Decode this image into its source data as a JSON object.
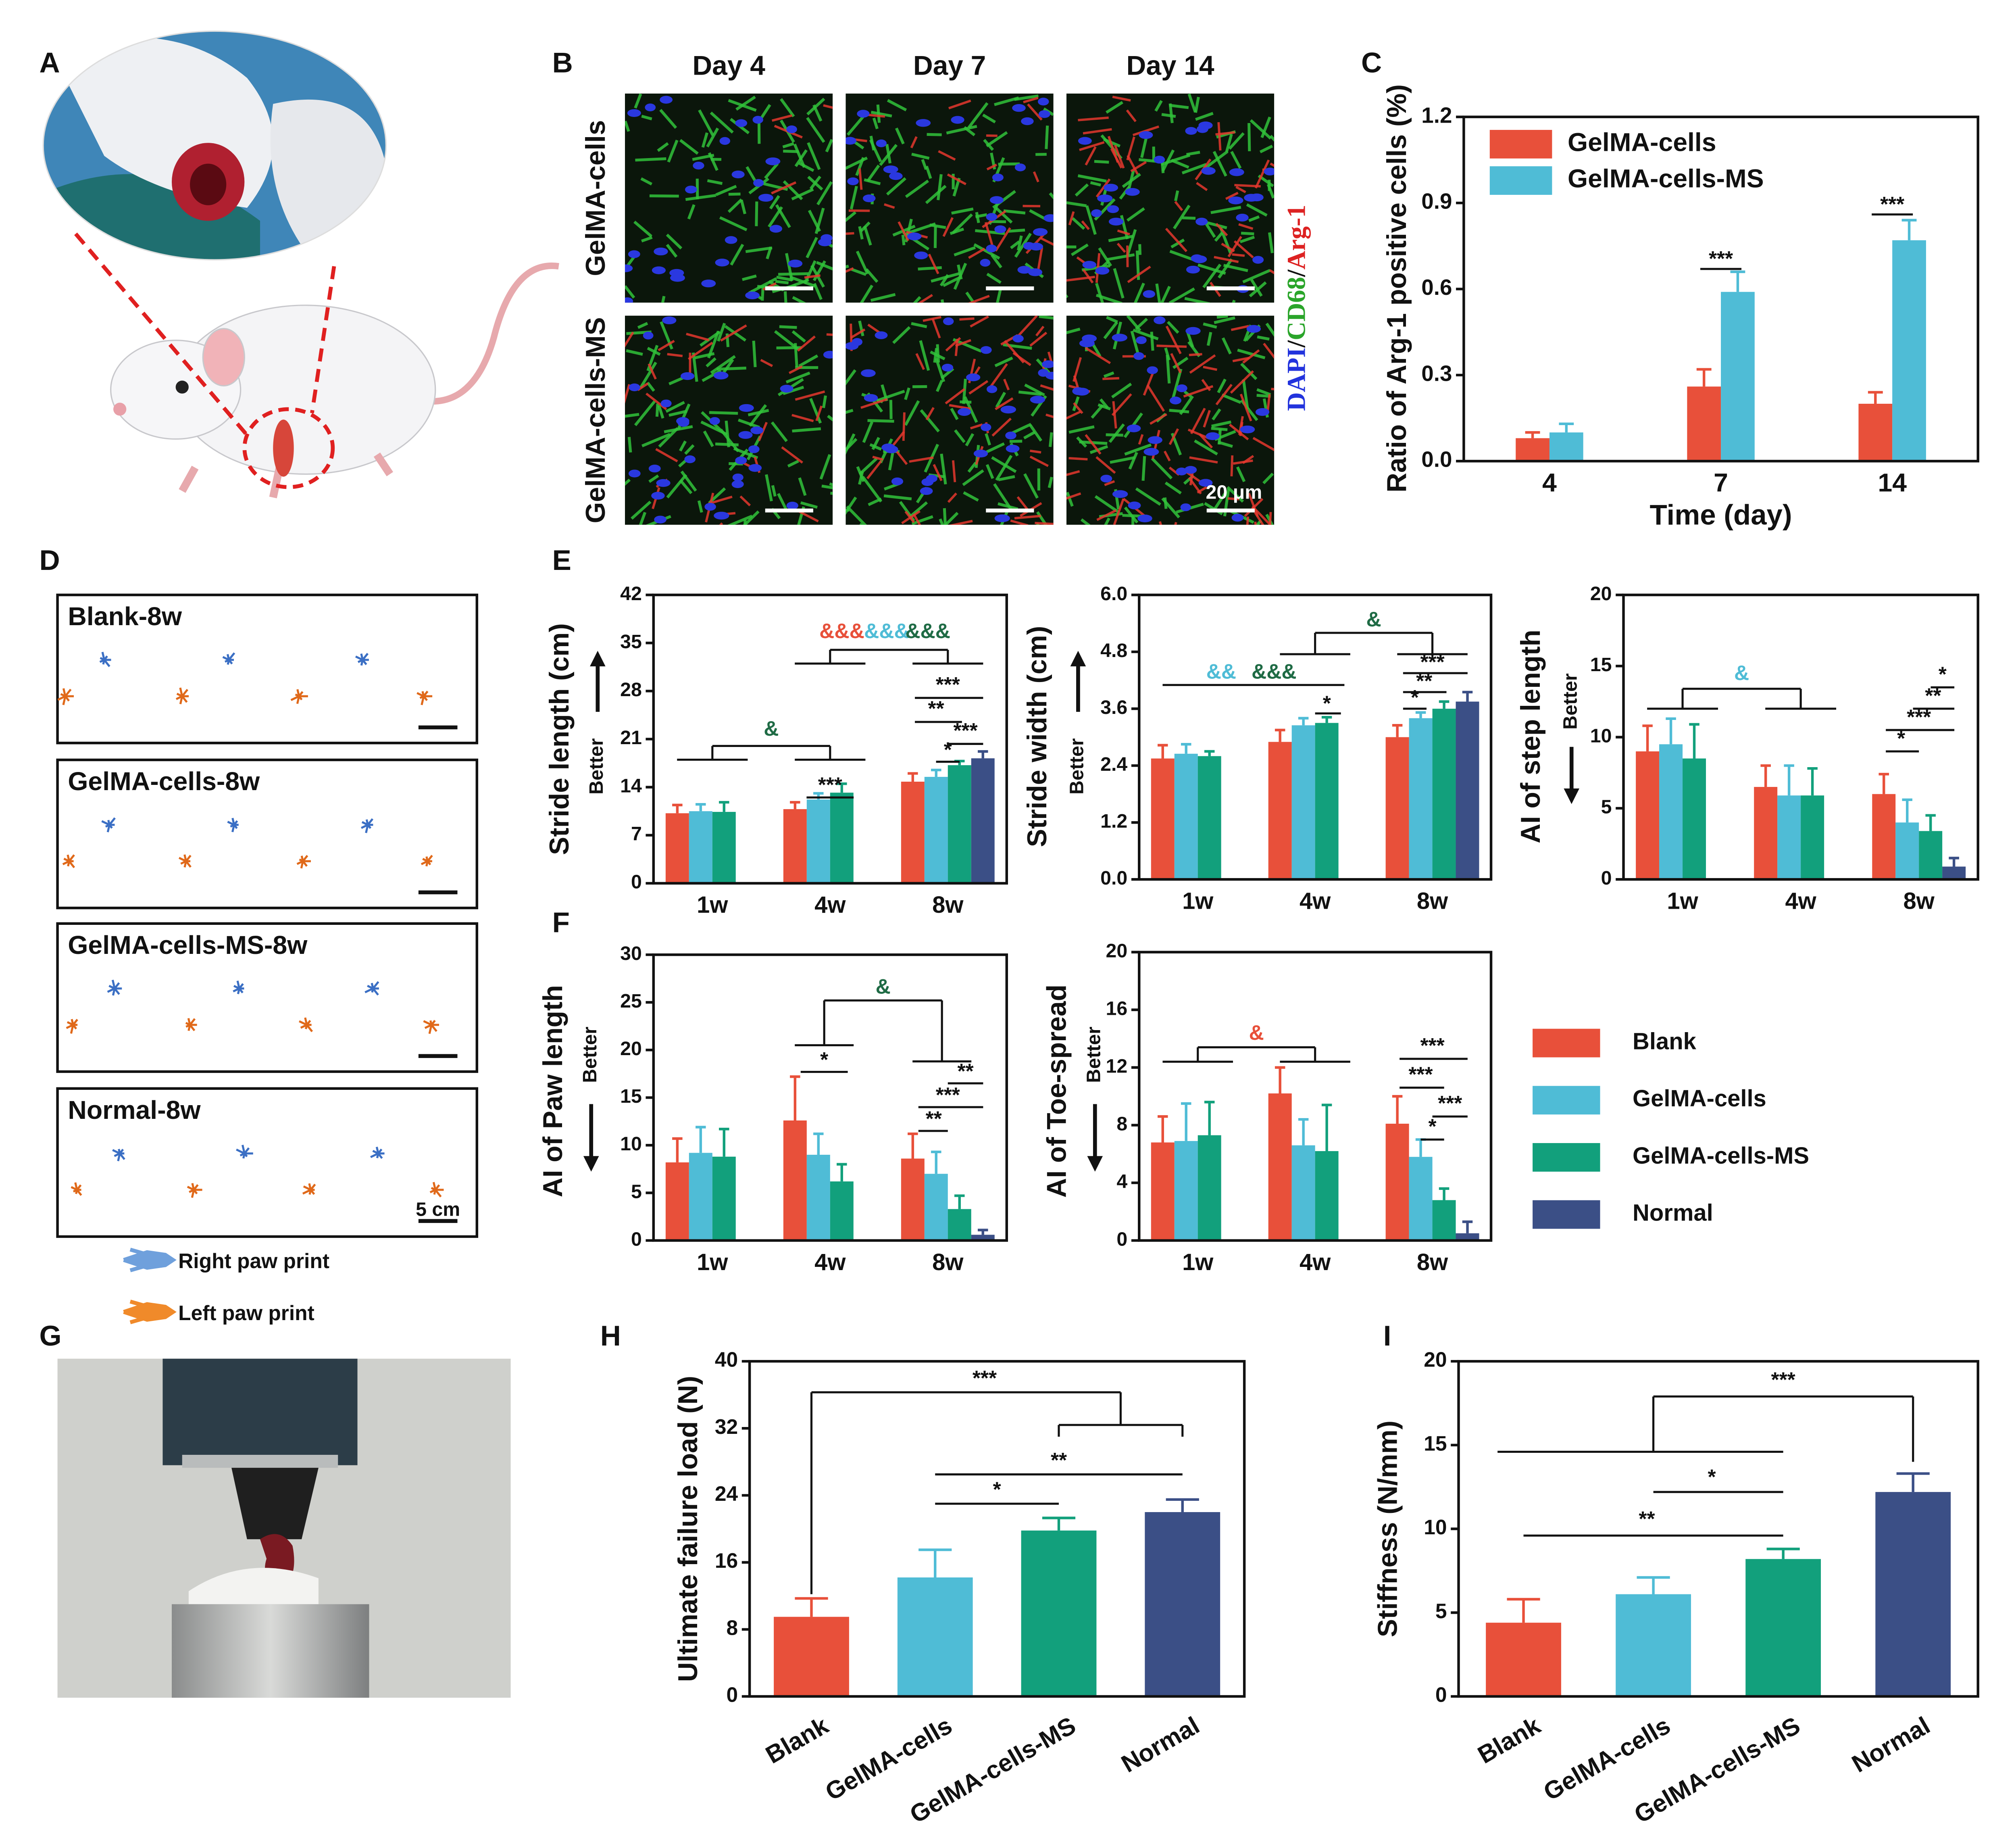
{
  "panel_labels": [
    "A",
    "B",
    "C",
    "D",
    "E",
    "F",
    "G",
    "H",
    "I"
  ],
  "micrographs": {
    "columns": [
      "Day 4",
      "Day 7",
      "Day 14"
    ],
    "rows": [
      "GelMA-cells",
      "GelMA-cells-MS"
    ],
    "stain": [
      "DAPI",
      "/",
      "CD68",
      "/",
      "Arg-1"
    ],
    "scale_bar": "20 μm"
  },
  "gait": {
    "groups": [
      "Blank-8w",
      "GelMA-cells-8w",
      "GelMA-cells-MS-8w",
      "Normal-8w"
    ],
    "scale_bar": "5 cm",
    "legend": [
      "Right paw print",
      "Left paw print"
    ]
  },
  "chart_data": [
    {
      "type": "bar",
      "ylabel": "Ratio of Arg-1 positive cells (%)",
      "xlabel": "Time (day)",
      "categories": [
        "4",
        "7",
        "14"
      ],
      "series": [
        {
          "name": "GelMA-cells",
          "color": "#e8503a",
          "values": [
            0.08,
            0.26,
            0.2
          ],
          "errors": [
            0.02,
            0.06,
            0.04
          ]
        },
        {
          "name": "GelMA-cells-MS",
          "color": "#4fbcd6",
          "values": [
            0.1,
            0.59,
            0.77
          ],
          "errors": [
            0.03,
            0.07,
            0.07
          ]
        }
      ],
      "ylim": [
        0,
        1.2
      ],
      "yticks": [
        {
          "value": 0,
          "label": "0.0"
        },
        0.3,
        0.6,
        0.9,
        1.2
      ],
      "legend": "upper left",
      "annotations": [
        {
          "text": "***"
        },
        {
          "text": "***"
        }
      ]
    },
    {
      "type": "bar",
      "ylabel": "Stride length (cm)",
      "better_label": "Better",
      "categories": [
        "1w",
        "4w",
        "8w"
      ],
      "series": [
        {
          "name": "Blank",
          "color": "#e8503a",
          "values": [
            10.2,
            10.8,
            14.8
          ],
          "errors": [
            1.2,
            1.0,
            1.2
          ]
        },
        {
          "name": "GelMA-cells",
          "color": "#4fbcd6",
          "values": [
            10.5,
            12.2,
            15.5
          ],
          "errors": [
            1.0,
            0.9,
            1.0
          ]
        },
        {
          "name": "GelMA-cells-MS",
          "color": "#12a07c",
          "values": [
            10.4,
            13.2,
            17.2
          ],
          "errors": [
            1.4,
            1.3,
            0.6
          ]
        },
        {
          "name": "Normal",
          "color": "#3b4f86",
          "values": [
            null,
            null,
            18.2
          ],
          "errors": [
            null,
            null,
            1.0
          ]
        }
      ],
      "ylim": [
        0,
        42
      ],
      "yticks": [
        0,
        7,
        14,
        21,
        28,
        35,
        42
      ],
      "annotations": [
        {
          "text": "&",
          "color": "#1f6b45"
        },
        {
          "text": "&&&",
          "color": "#e8503a"
        },
        {
          "text": "&&&",
          "color": "#4fbcd6"
        },
        {
          "text": "&&&",
          "color": "#1f6b45"
        },
        {
          "text": "***"
        },
        {
          "text": "***"
        },
        {
          "text": "**"
        },
        {
          "text": "***"
        },
        {
          "text": "*"
        }
      ]
    },
    {
      "type": "bar",
      "ylabel": "Stride width (cm)",
      "better_label": "Better",
      "categories": [
        "1w",
        "4w",
        "8w"
      ],
      "series": [
        {
          "name": "Blank",
          "color": "#e8503a",
          "values": [
            2.55,
            2.9,
            3.0
          ],
          "errors": [
            0.28,
            0.25,
            0.25
          ]
        },
        {
          "name": "GelMA-cells",
          "color": "#4fbcd6",
          "values": [
            2.65,
            3.25,
            3.4
          ],
          "errors": [
            0.2,
            0.15,
            0.12
          ]
        },
        {
          "name": "GelMA-cells-MS",
          "color": "#12a07c",
          "values": [
            2.6,
            3.3,
            3.6
          ],
          "errors": [
            0.1,
            0.12,
            0.15
          ]
        },
        {
          "name": "Normal",
          "color": "#3b4f86",
          "values": [
            null,
            null,
            3.75
          ],
          "errors": [
            null,
            null,
            0.2
          ]
        }
      ],
      "ylim": [
        0,
        6
      ],
      "yticks": [
        {
          "value": 0,
          "label": "0.0"
        },
        1.2,
        2.4,
        3.6,
        4.8,
        {
          "value": 6,
          "label": "6.0"
        }
      ],
      "annotations": [
        {
          "text": "&&",
          "color": "#4fbcd6"
        },
        {
          "text": "&&&",
          "color": "#1f6b45"
        },
        {
          "text": "&",
          "color": "#1f6b45"
        },
        {
          "text": "*"
        },
        {
          "text": "***"
        },
        {
          "text": "**"
        },
        {
          "text": "*"
        }
      ]
    },
    {
      "type": "bar",
      "ylabel": "AI of step length",
      "better_label": "Better",
      "categories": [
        "1w",
        "4w",
        "8w"
      ],
      "series": [
        {
          "name": "Blank",
          "color": "#e8503a",
          "values": [
            9,
            6.5,
            6
          ],
          "errors": [
            1.8,
            1.5,
            1.4
          ]
        },
        {
          "name": "GelMA-cells",
          "color": "#4fbcd6",
          "values": [
            9.5,
            5.9,
            4
          ],
          "errors": [
            1.8,
            2.1,
            1.6
          ]
        },
        {
          "name": "GelMA-cells-MS",
          "color": "#12a07c",
          "values": [
            8.5,
            5.9,
            3.4
          ],
          "errors": [
            2.4,
            1.9,
            1.1
          ]
        },
        {
          "name": "Normal",
          "color": "#3b4f86",
          "values": [
            null,
            null,
            0.9
          ],
          "errors": [
            null,
            null,
            0.6
          ]
        }
      ],
      "ylim": [
        0,
        20
      ],
      "yticks": [
        0,
        5,
        10,
        15,
        20
      ],
      "annotations": [
        {
          "text": "&",
          "color": "#4fbcd6"
        },
        {
          "text": "*"
        },
        {
          "text": "**"
        },
        {
          "text": "***"
        },
        {
          "text": "*"
        }
      ]
    },
    {
      "type": "bar",
      "ylabel": "AI of Paw length",
      "better_label": "Better",
      "categories": [
        "1w",
        "4w",
        "8w"
      ],
      "series": [
        {
          "name": "Blank",
          "color": "#e8503a",
          "values": [
            8.2,
            12.6,
            8.6
          ],
          "errors": [
            2.5,
            4.6,
            2.6
          ]
        },
        {
          "name": "GelMA-cells",
          "color": "#4fbcd6",
          "values": [
            9.2,
            9.0,
            7.0
          ],
          "errors": [
            2.7,
            2.2,
            2.3
          ]
        },
        {
          "name": "GelMA-cells-MS",
          "color": "#12a07c",
          "values": [
            8.8,
            6.2,
            3.3
          ],
          "errors": [
            2.9,
            1.8,
            1.4
          ]
        },
        {
          "name": "Normal",
          "color": "#3b4f86",
          "values": [
            null,
            null,
            0.6
          ],
          "errors": [
            null,
            null,
            0.5
          ]
        }
      ],
      "ylim": [
        0,
        30
      ],
      "yticks": [
        0,
        5,
        10,
        15,
        20,
        25,
        30
      ],
      "annotations": [
        {
          "text": "*"
        },
        {
          "text": "&",
          "color": "#1f6b45"
        },
        {
          "text": "**"
        },
        {
          "text": "***"
        },
        {
          "text": "**"
        }
      ]
    },
    {
      "type": "bar",
      "ylabel": "AI of Toe-spread",
      "better_label": "Better",
      "categories": [
        "1w",
        "4w",
        "8w"
      ],
      "series": [
        {
          "name": "Blank",
          "color": "#e8503a",
          "values": [
            6.8,
            10.2,
            8.1
          ],
          "errors": [
            1.8,
            1.8,
            1.9
          ]
        },
        {
          "name": "GelMA-cells",
          "color": "#4fbcd6",
          "values": [
            6.9,
            6.6,
            5.8
          ],
          "errors": [
            2.6,
            1.8,
            1.2
          ]
        },
        {
          "name": "GelMA-cells-MS",
          "color": "#12a07c",
          "values": [
            7.3,
            6.2,
            2.8
          ],
          "errors": [
            2.3,
            3.2,
            0.8
          ]
        },
        {
          "name": "Normal",
          "color": "#3b4f86",
          "values": [
            null,
            null,
            0.5
          ],
          "errors": [
            null,
            null,
            0.8
          ]
        }
      ],
      "ylim": [
        0,
        20
      ],
      "yticks": [
        0,
        4,
        8,
        12,
        16,
        20
      ],
      "annotations": [
        {
          "text": "&",
          "color": "#e8503a"
        },
        {
          "text": "***"
        },
        {
          "text": "***"
        },
        {
          "text": "***"
        },
        {
          "text": "*"
        }
      ]
    },
    {
      "type": "bar",
      "ylabel": "Ultimate failure load (N)",
      "categories": [
        "Blank",
        "GelMA-cells",
        "GelMA-cells-MS",
        "Normal"
      ],
      "values": [
        9.5,
        14.2,
        19.8,
        22
      ],
      "errors": [
        2.2,
        3.3,
        1.5,
        1.5
      ],
      "colors": [
        "#e8503a",
        "#4fbcd6",
        "#12a07c",
        "#3b4f86"
      ],
      "ylim": [
        0,
        40
      ],
      "yticks": [
        0,
        8,
        16,
        24,
        32,
        40
      ],
      "annotations": [
        {
          "text": "***"
        },
        {
          "text": "**"
        },
        {
          "text": "*"
        }
      ]
    },
    {
      "type": "bar",
      "ylabel": "Stiffness (N/mm)",
      "categories": [
        "Blank",
        "GelMA-cells",
        "GelMA-cells-MS",
        "Normal"
      ],
      "values": [
        4.4,
        6.1,
        8.2,
        12.2
      ],
      "errors": [
        1.4,
        1.0,
        0.6,
        1.1
      ],
      "colors": [
        "#e8503a",
        "#4fbcd6",
        "#12a07c",
        "#3b4f86"
      ],
      "ylim": [
        0,
        20
      ],
      "yticks": [
        0,
        5,
        10,
        15,
        20
      ],
      "annotations": [
        {
          "text": "***"
        },
        {
          "text": "*"
        },
        {
          "text": "**"
        }
      ]
    }
  ]
}
